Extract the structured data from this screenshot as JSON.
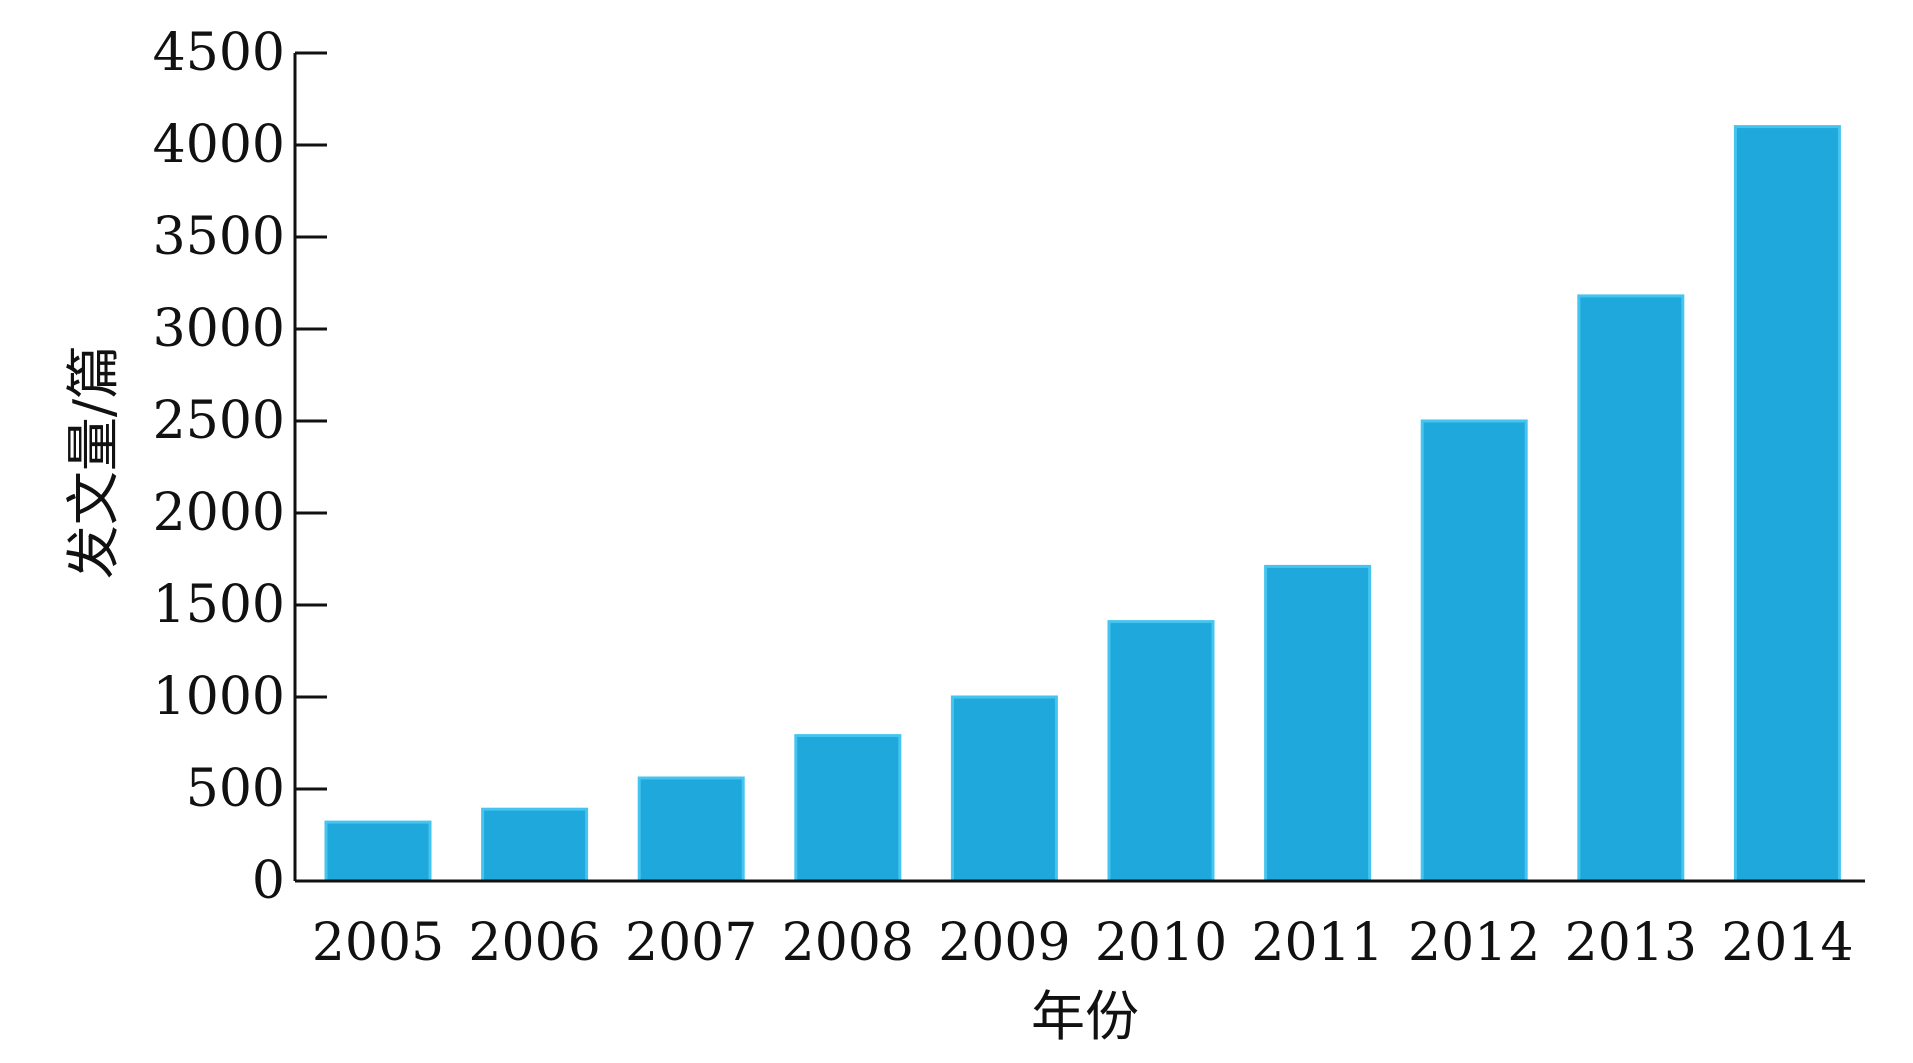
{
  "chart_data": {
    "type": "bar",
    "categories": [
      "2005",
      "2006",
      "2007",
      "2008",
      "2009",
      "2010",
      "2011",
      "2012",
      "2013",
      "2014"
    ],
    "values": [
      320,
      390,
      560,
      790,
      1000,
      1410,
      1710,
      2500,
      3180,
      4100
    ],
    "xlabel": "年份",
    "ylabel": "发文量/篇",
    "ylim": [
      0,
      4500
    ],
    "yticks": [
      0,
      500,
      1000,
      1500,
      2000,
      2500,
      3000,
      3500,
      4000,
      4500
    ],
    "grid": false,
    "legend": "none",
    "colors": {
      "bar_fill": "#1ea8dc",
      "bar_stroke": "#45c4ef",
      "axis": "#111111"
    }
  }
}
